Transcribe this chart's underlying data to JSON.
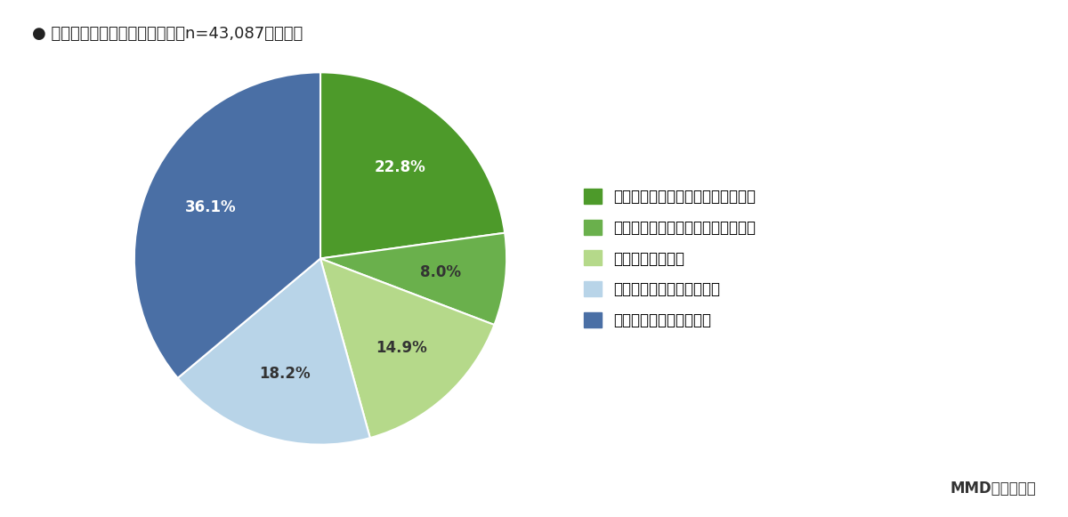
{
  "title": "● 投資に興味を持っている割合（n=43,087、単数）",
  "values": [
    22.8,
    8.0,
    14.9,
    18.2,
    36.1
  ],
  "labels": [
    "22.8%",
    "8.0%",
    "14.9%",
    "18.2%",
    "36.1%"
  ],
  "colors": [
    "#4d9a2a",
    "#6ab04c",
    "#b5d98a",
    "#b8d4e8",
    "#4a6fa5"
  ],
  "legend_labels": [
    "興味を持っていて投資を始めている",
    "興味を持っていて情報収集している",
    "興味を持ち始めた",
    "あまり興味を持っていない",
    "全く興味を持っていない"
  ],
  "legend_colors": [
    "#4d9a2a",
    "#6ab04c",
    "#b5d98a",
    "#b8d4e8",
    "#4a6fa5"
  ],
  "source_text": "MMD研究所調べ",
  "background_color": "#ffffff",
  "startangle": 90,
  "title_fontsize": 13,
  "label_fontsize": 12,
  "legend_fontsize": 12,
  "source_fontsize": 12
}
